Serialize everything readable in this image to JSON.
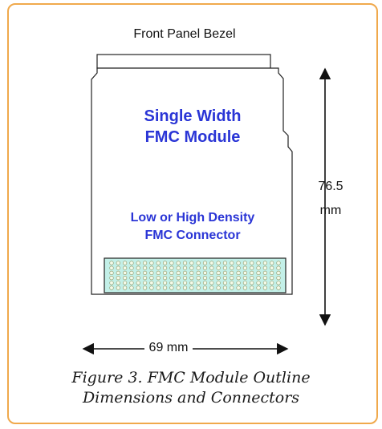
{
  "diagram": {
    "bezel_label": "Front Panel Bezel",
    "module_title": {
      "line1": "Single Width",
      "line2": "FMC Module"
    },
    "connector_title": {
      "line1": "Low or High Density",
      "line2": "FMC Connector"
    },
    "height_dimension": {
      "value": "76.5",
      "unit": "mm"
    },
    "width_dimension": "69 mm",
    "connector_pins": {
      "rows": 6,
      "columns": 26
    }
  },
  "caption": {
    "line1": "Figure 3. FMC Module Outline",
    "line2": "Dimensions and Connectors"
  },
  "colors": {
    "frame_border": "#f0a94c",
    "label_blue": "#2a35d6",
    "connector_fill": "#c3f0e8",
    "pin_fill": "#f4fbe9",
    "outline": "#222222"
  }
}
